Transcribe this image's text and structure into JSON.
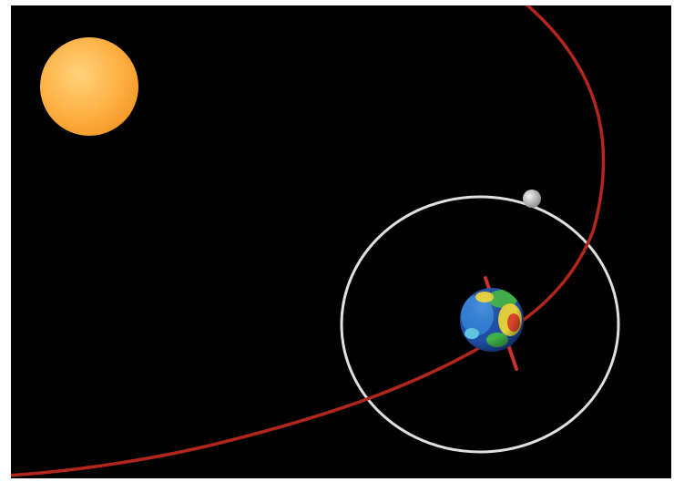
{
  "scene": {
    "background_color": "#000000",
    "frame_color": "#ffffff",
    "objects": [
      {
        "name": "sun",
        "color": "#ffb347"
      },
      {
        "name": "earth-orbit-path",
        "color": "#b3261e"
      },
      {
        "name": "moon-orbit-ring",
        "color": "#e0e0e0"
      },
      {
        "name": "moon",
        "color": "#cfcfcf"
      },
      {
        "name": "earth",
        "colors": [
          "#1f4fa8",
          "#2e7ed6",
          "#3fb14a",
          "#e4d23a",
          "#d9462a"
        ]
      },
      {
        "name": "earth-rotation-axis",
        "color": "#c8322a"
      }
    ]
  }
}
